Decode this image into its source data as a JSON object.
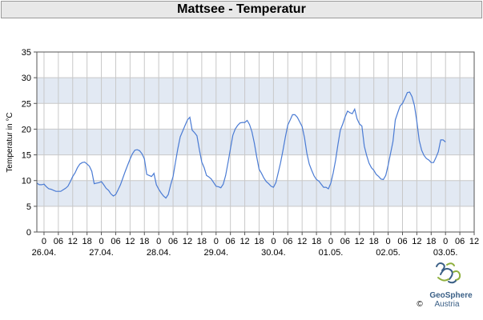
{
  "header": {
    "title": "Mattsee - Temperatur"
  },
  "colors": {
    "band": "#e2e9f3",
    "line": "#4a7bd4",
    "grid": "#c8c8c8",
    "frame": "#555555"
  },
  "logo": {
    "name": "GeoSphere",
    "sub": "Austria",
    "copyright": "©",
    "icon": "geosphere-logo-icon"
  },
  "chart_data": {
    "type": "line",
    "title": "",
    "ylabel": "Temperatur in °C",
    "xlabel": "",
    "ylim": [
      0,
      35
    ],
    "yticks": [
      0,
      5,
      10,
      15,
      20,
      25,
      30,
      35
    ],
    "grid": true,
    "x_hours_start": "25.04. 21:00",
    "x_hour_ticks": [
      "0",
      "06",
      "12",
      "18",
      "0",
      "06",
      "12",
      "18",
      "0",
      "06",
      "12",
      "18",
      "0",
      "06",
      "12",
      "18",
      "0",
      "06",
      "12",
      "18",
      "0",
      "06",
      "12",
      "18",
      "0",
      "06",
      "12",
      "18",
      "0",
      "06",
      "12",
      "18",
      "0",
      "06"
    ],
    "date_labels": [
      "26.04.",
      "27.04.",
      "28.04.",
      "29.04.",
      "30.04.",
      "01.05.",
      "02.05.",
      "03.05."
    ],
    "series": [
      {
        "name": "",
        "step_hours": 1,
        "values": [
          9.5,
          9.2,
          9.2,
          9.3,
          8.8,
          8.4,
          8.3,
          8.1,
          7.9,
          7.9,
          7.9,
          8.2,
          8.5,
          8.9,
          9.8,
          10.8,
          11.5,
          12.5,
          13.2,
          13.5,
          13.6,
          13.2,
          12.8,
          11.8,
          9.4,
          9.5,
          9.6,
          9.8,
          9.2,
          8.5,
          8.1,
          7.4,
          7.0,
          7.3,
          8.2,
          9.2,
          10.5,
          11.8,
          13.0,
          14.2,
          15.2,
          15.9,
          16.0,
          15.8,
          15.2,
          14.2,
          11.2,
          11.0,
          10.8,
          11.4,
          9.2,
          8.3,
          7.6,
          7.0,
          6.6,
          7.3,
          9.2,
          10.8,
          13.5,
          16.2,
          18.5,
          19.6,
          20.7,
          21.8,
          22.3,
          19.8,
          19.3,
          18.7,
          16.0,
          13.6,
          12.5,
          11.0,
          10.7,
          10.3,
          9.6,
          8.9,
          8.8,
          8.6,
          9.3,
          11.0,
          13.5,
          16.2,
          18.8,
          20.0,
          20.7,
          21.2,
          21.3,
          21.3,
          21.7,
          20.9,
          19.5,
          17.3,
          14.6,
          12.2,
          11.4,
          10.5,
          9.8,
          9.4,
          8.9,
          8.7,
          9.6,
          11.5,
          13.5,
          15.9,
          18.5,
          20.8,
          21.8,
          22.8,
          22.8,
          22.3,
          21.4,
          20.5,
          18.3,
          15.3,
          13.2,
          12.0,
          10.9,
          10.2,
          9.9,
          9.3,
          8.7,
          8.7,
          8.4,
          9.5,
          11.5,
          14.0,
          17.0,
          19.8,
          21.0,
          22.4,
          23.5,
          23.2,
          23.0,
          23.9,
          22.0,
          21.0,
          20.6,
          16.7,
          14.9,
          13.4,
          12.5,
          12.0,
          11.2,
          10.8,
          10.3,
          10.2,
          11.0,
          13.0,
          15.3,
          17.6,
          21.8,
          23.2,
          24.5,
          25.0,
          26.0,
          27.1,
          27.2,
          26.3,
          24.6,
          21.5,
          17.8,
          15.9,
          14.9,
          14.3,
          14.0,
          13.5,
          13.5,
          14.5,
          15.6,
          17.9,
          17.9,
          17.5
        ]
      }
    ]
  }
}
